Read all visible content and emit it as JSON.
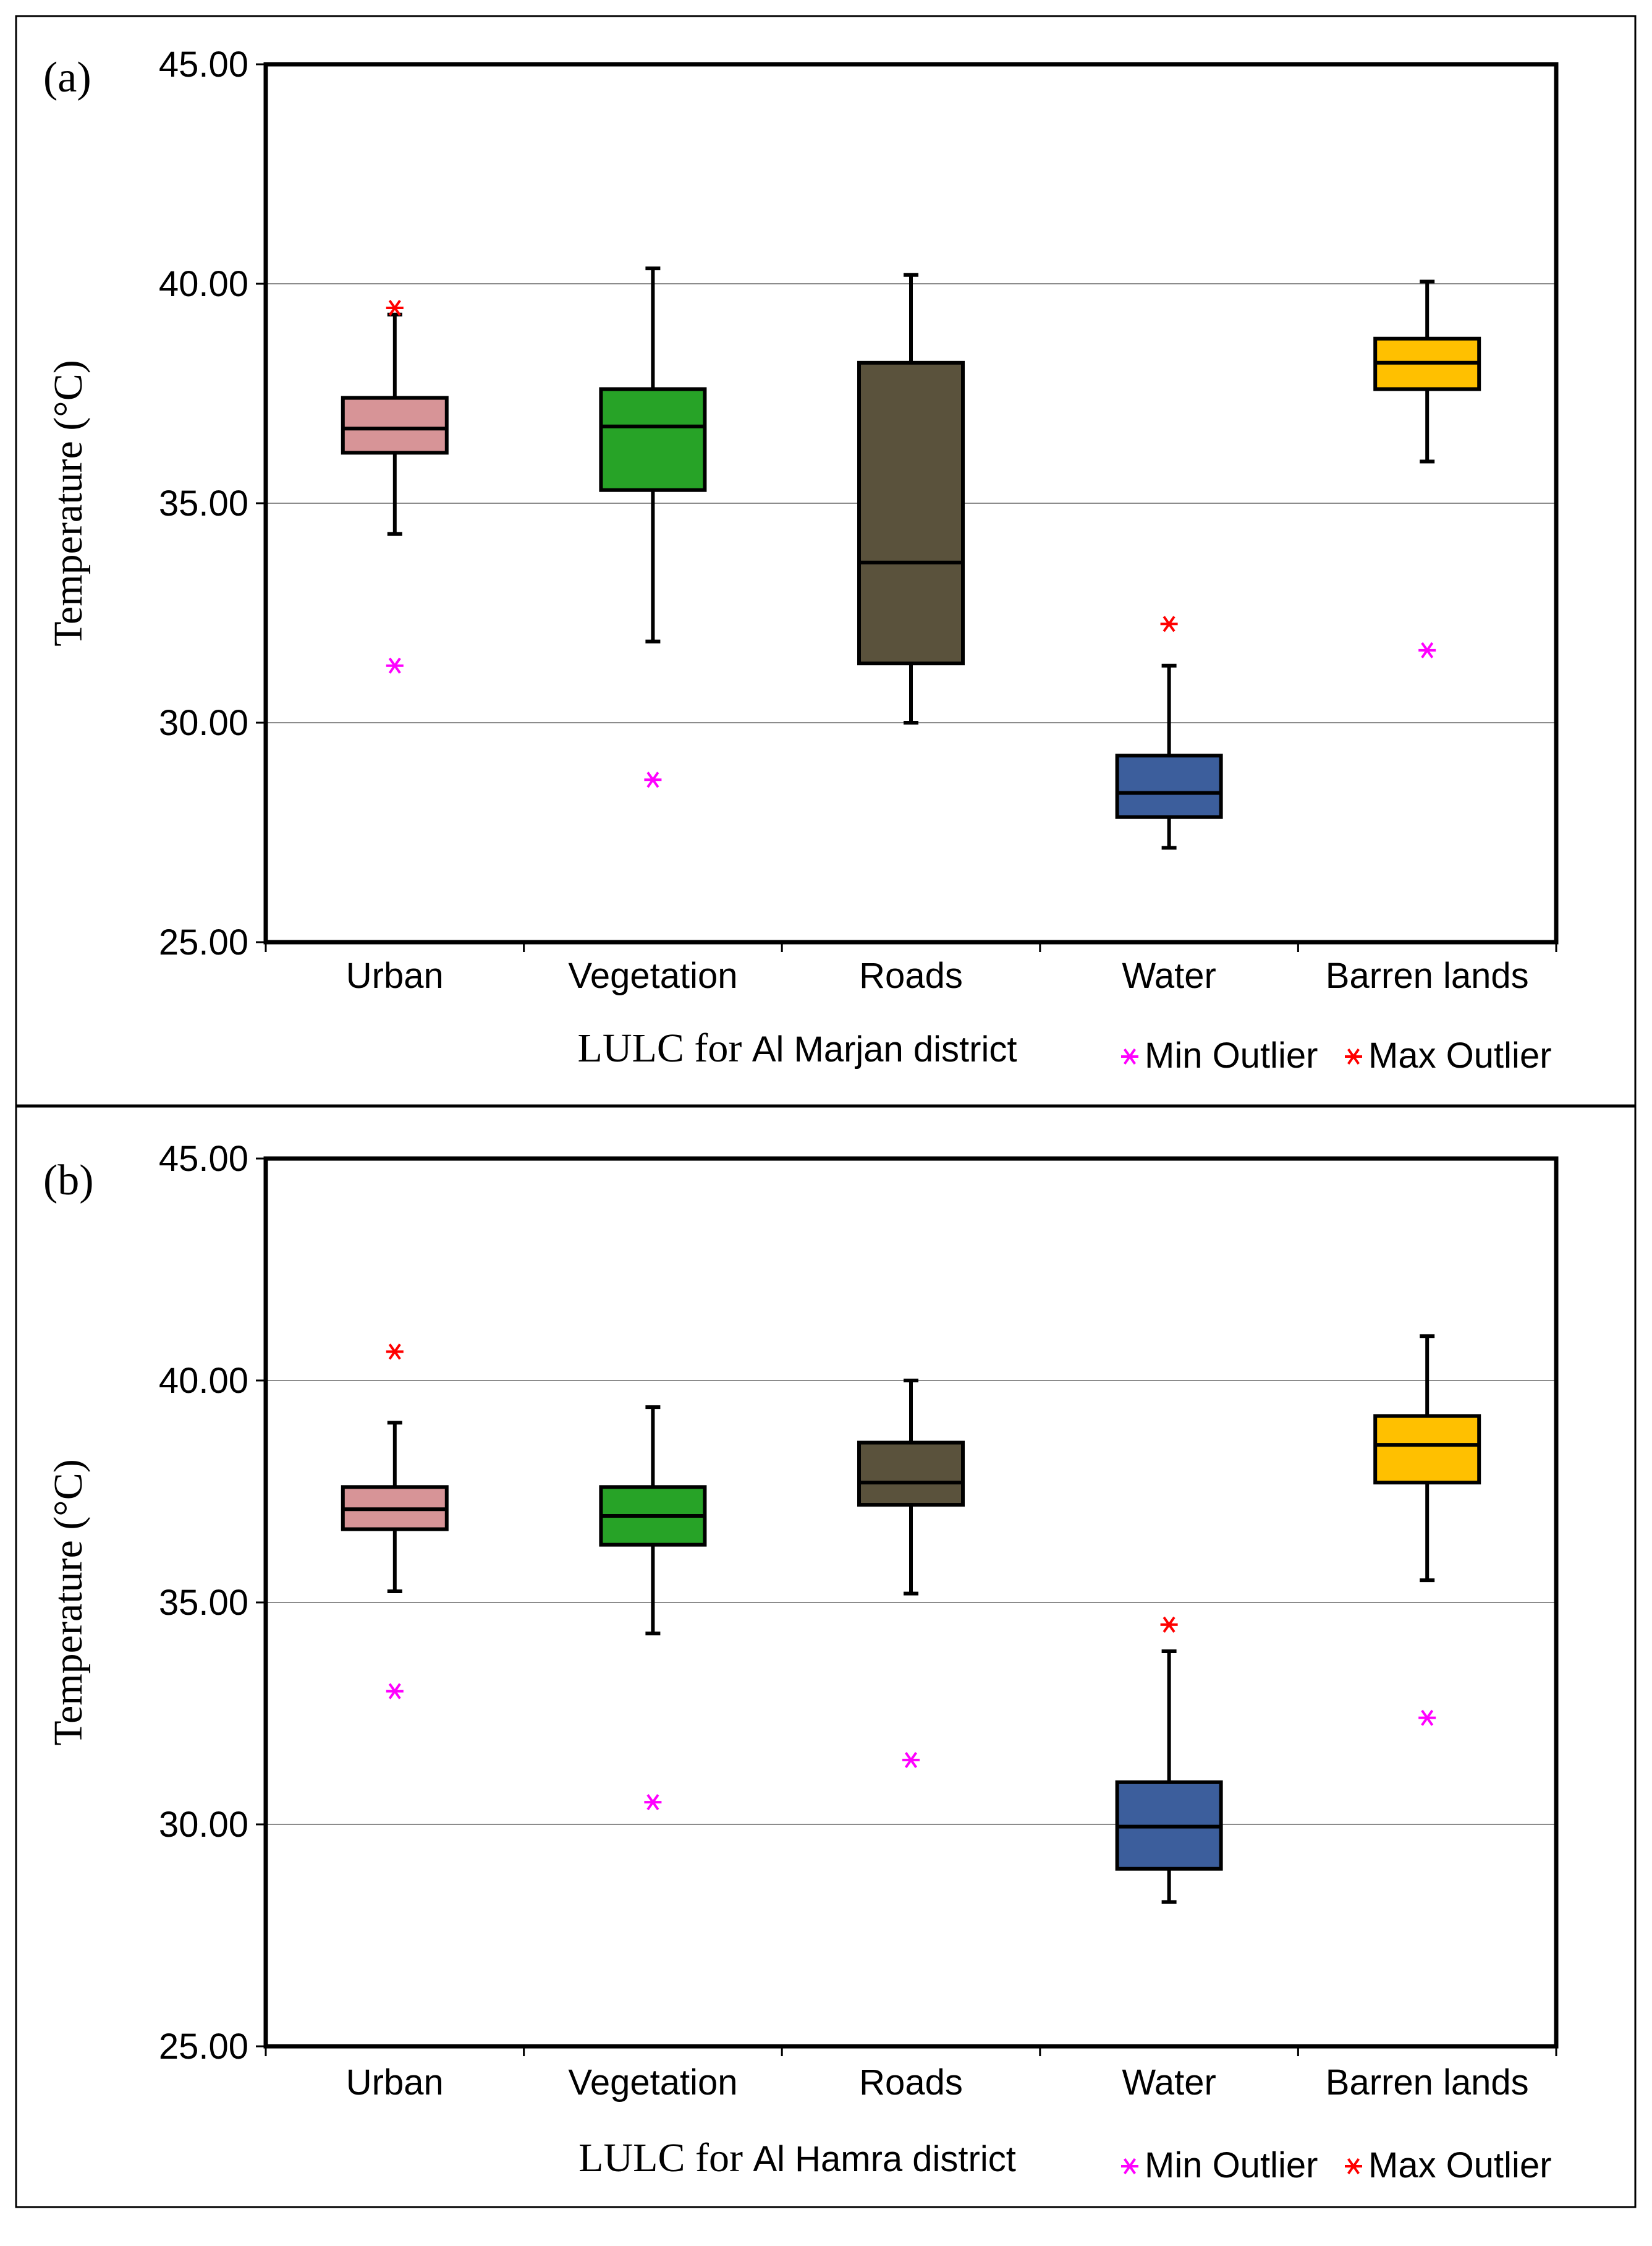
{
  "chart_data": [
    {
      "type": "box",
      "panel": "(a)",
      "xlabel_prefix": "LULC for ",
      "xlabel_place": "Al Marjan district",
      "ylabel": "Temperature (°C)",
      "ylim": [
        25,
        45
      ],
      "yticks": [
        "25.00",
        "30.00",
        "35.00",
        "40.00",
        "45.00"
      ],
      "categories": [
        "Urban",
        "Vegetation",
        "Roads",
        "Water",
        "Barren lands"
      ],
      "boxes": [
        {
          "name": "Urban",
          "min": 34.3,
          "q1": 36.15,
          "median": 36.7,
          "q3": 37.4,
          "max": 39.3,
          "min_outlier": 31.3,
          "max_outlier": 39.45,
          "color": "#d79497"
        },
        {
          "name": "Vegetation",
          "min": 31.85,
          "q1": 35.3,
          "median": 36.75,
          "q3": 37.6,
          "max": 40.35,
          "min_outlier": 28.7,
          "max_outlier": null,
          "color": "#27a327"
        },
        {
          "name": "Roads",
          "min": 30.0,
          "q1": 31.35,
          "median": 33.65,
          "q3": 38.2,
          "max": 40.2,
          "min_outlier": null,
          "max_outlier": null,
          "color": "#5a523c"
        },
        {
          "name": "Water",
          "min": 27.15,
          "q1": 27.85,
          "median": 28.4,
          "q3": 29.25,
          "max": 31.3,
          "min_outlier": null,
          "max_outlier": 32.25,
          "color": "#3c5e9c"
        },
        {
          "name": "Barren lands",
          "min": 35.95,
          "q1": 37.6,
          "median": 38.2,
          "q3": 38.75,
          "max": 40.05,
          "min_outlier": 31.65,
          "max_outlier": null,
          "color": "#ffc000"
        }
      ],
      "legend": [
        {
          "label": "Min Outlier",
          "color": "#ff00ff"
        },
        {
          "label": "Max Outlier",
          "color": "#ff0000"
        }
      ],
      "gridlines": true
    },
    {
      "type": "box",
      "panel": "(b)",
      "xlabel_prefix": "LULC for ",
      "xlabel_place": "Al Hamra district",
      "ylabel": "Temperature (°C)",
      "ylim": [
        25,
        45
      ],
      "yticks": [
        "25.00",
        "30.00",
        "35.00",
        "40.00",
        "45.00"
      ],
      "categories": [
        "Urban",
        "Vegetation",
        "Roads",
        "Water",
        "Barren lands"
      ],
      "boxes": [
        {
          "name": "Urban",
          "min": 35.25,
          "q1": 36.65,
          "median": 37.1,
          "q3": 37.6,
          "max": 39.05,
          "min_outlier": 33.0,
          "max_outlier": 40.65,
          "color": "#d79497"
        },
        {
          "name": "Vegetation",
          "min": 34.3,
          "q1": 36.3,
          "median": 36.95,
          "q3": 37.6,
          "max": 39.4,
          "min_outlier": 30.5,
          "max_outlier": null,
          "color": "#27a327"
        },
        {
          "name": "Roads",
          "min": 35.2,
          "q1": 37.2,
          "median": 37.7,
          "q3": 38.6,
          "max": 40.0,
          "min_outlier": 31.45,
          "max_outlier": null,
          "color": "#5a523c"
        },
        {
          "name": "Water",
          "min": 28.25,
          "q1": 29.0,
          "median": 29.95,
          "q3": 30.95,
          "max": 33.9,
          "min_outlier": null,
          "max_outlier": 34.5,
          "color": "#3c5e9c"
        },
        {
          "name": "Barren lands",
          "min": 35.5,
          "q1": 37.7,
          "median": 38.55,
          "q3": 39.2,
          "max": 41.0,
          "min_outlier": 32.4,
          "max_outlier": null,
          "color": "#ffc000"
        }
      ],
      "legend": [
        {
          "label": "Min Outlier",
          "color": "#ff00ff"
        },
        {
          "label": "Max Outlier",
          "color": "#ff0000"
        }
      ],
      "gridlines": true
    }
  ]
}
